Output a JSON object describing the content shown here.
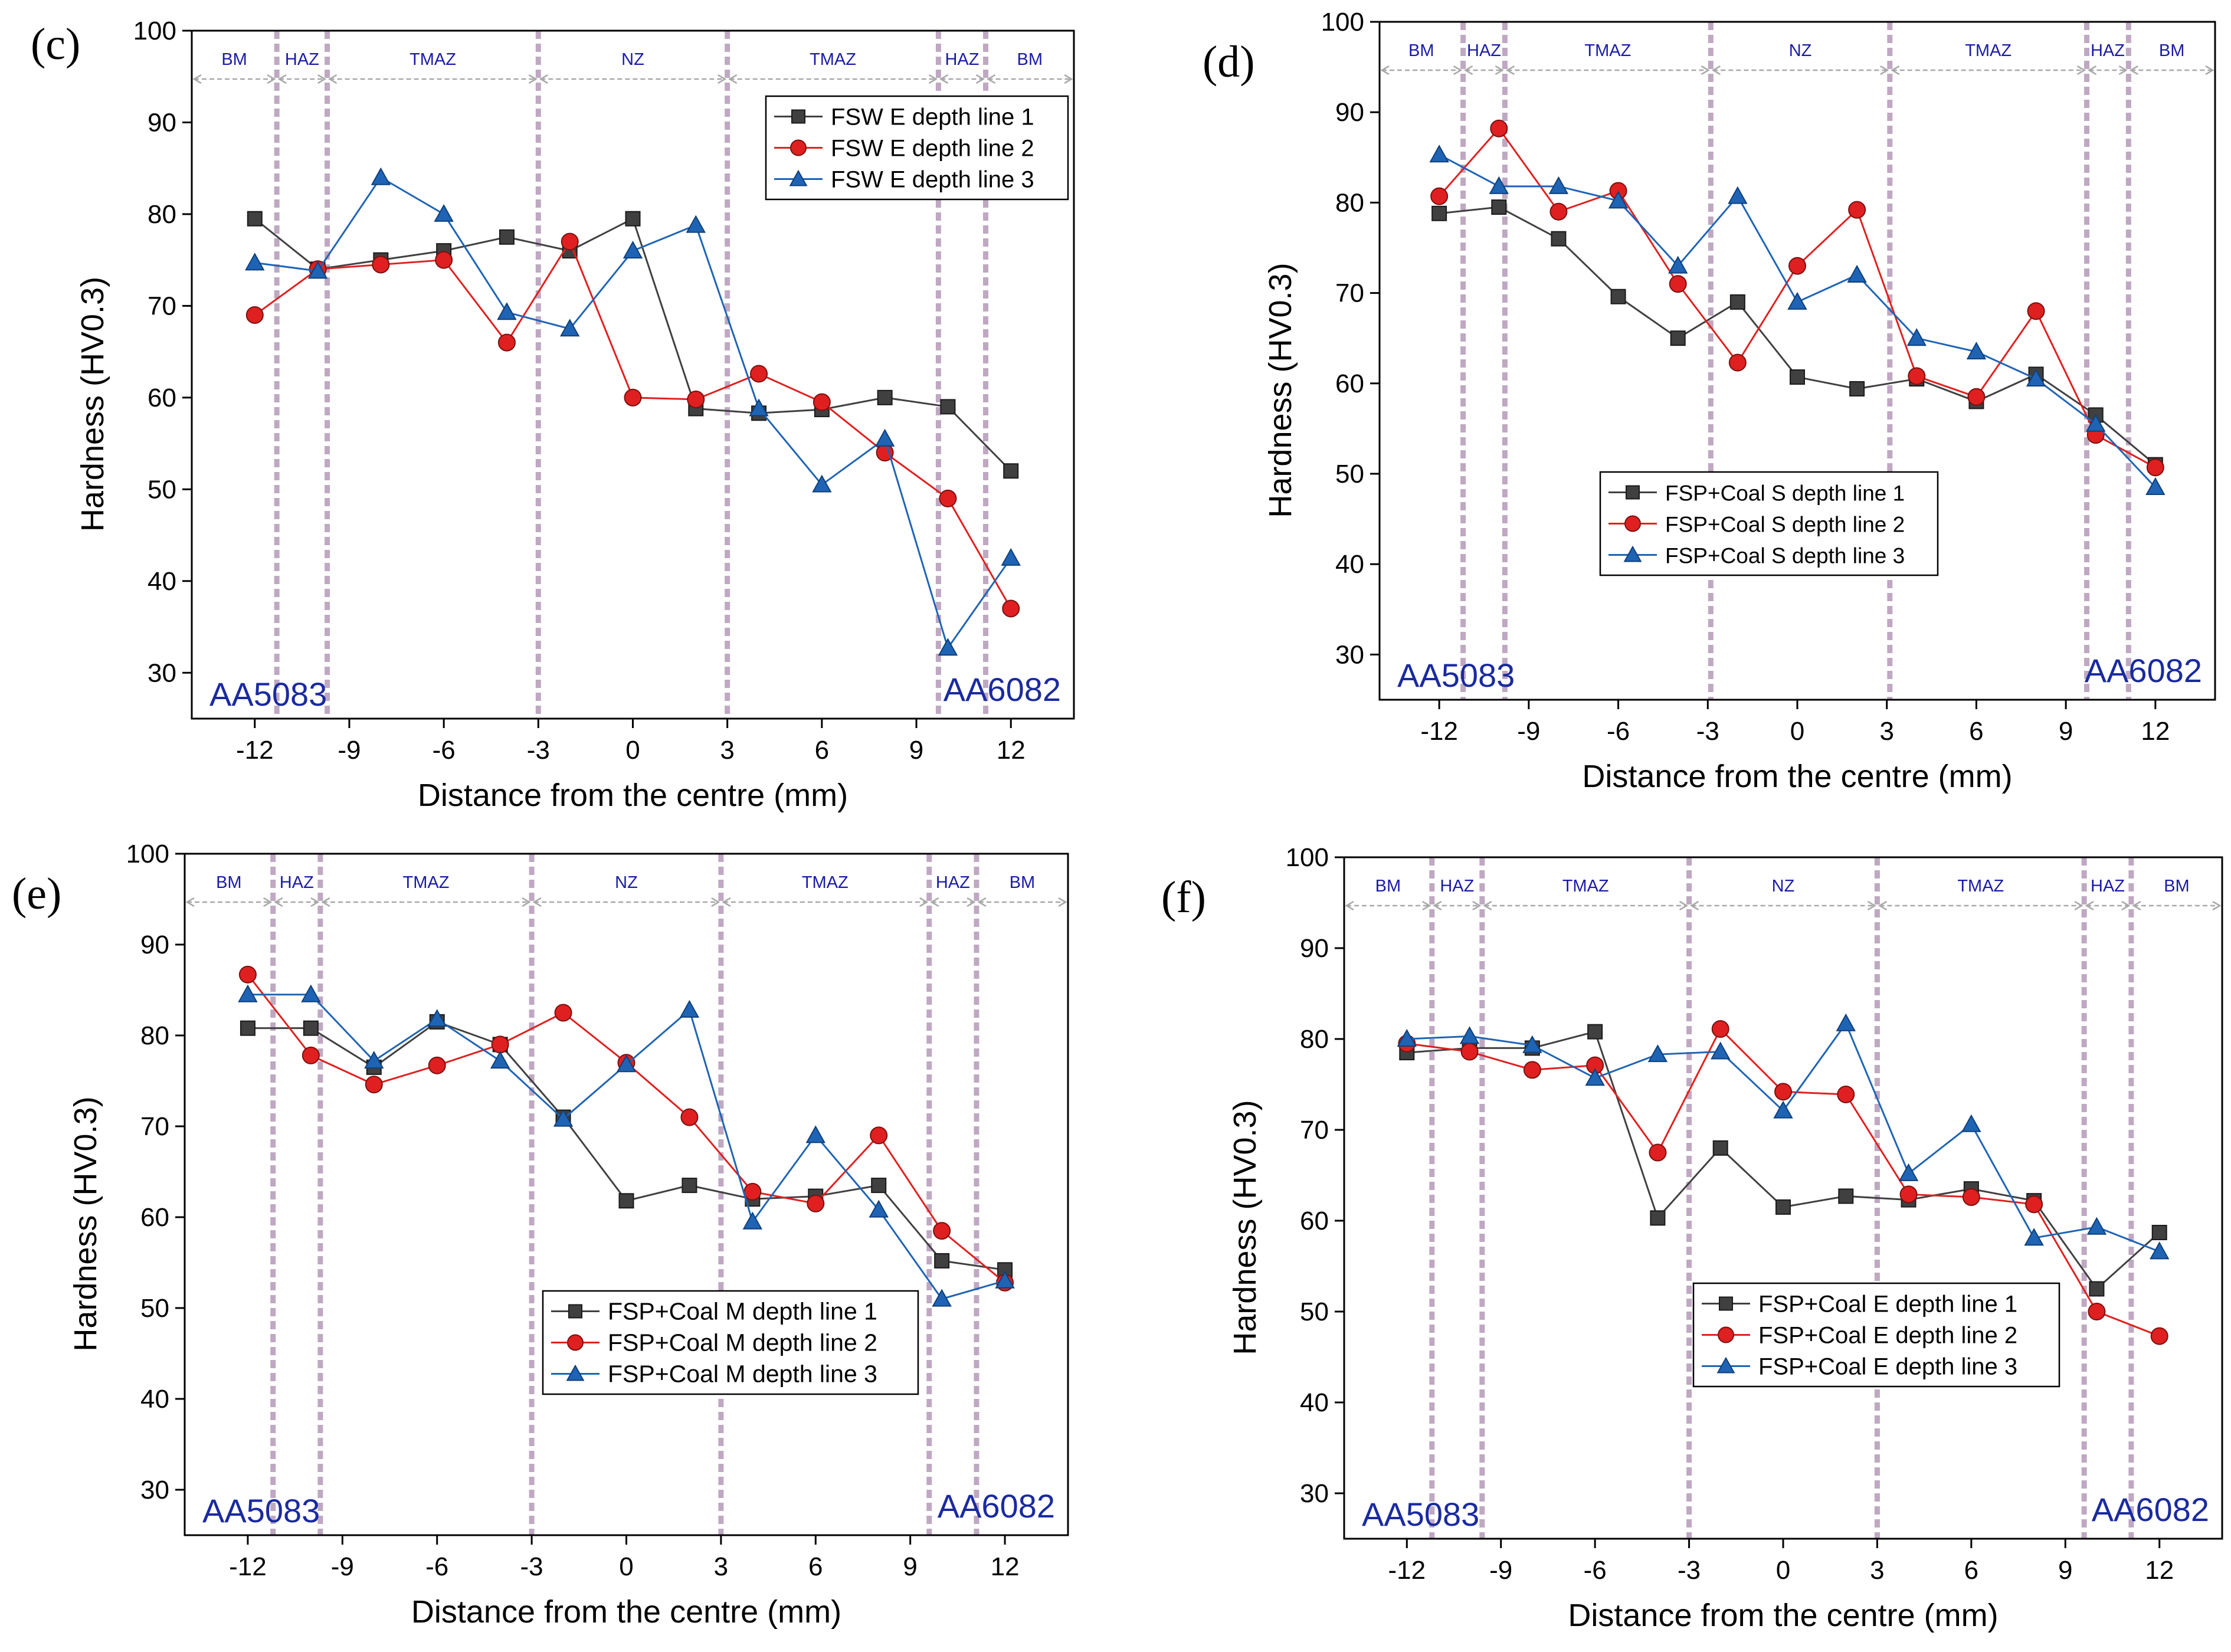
{
  "colors": {
    "series1": "#404040",
    "series2": "#e02020",
    "series3": "#1f64b4",
    "zone_label": "#1a1aa8",
    "material_label": "#1a2aa0",
    "zone_line": "#b49ab8",
    "zone_arrow": "#a8a8a8",
    "axis": "#000000"
  },
  "chart_data": [
    {
      "panel": "(c)",
      "type": "line",
      "xlabel": "Distance from the centre (mm)",
      "ylabel": "Hardness (HV0.3)",
      "xlim": [
        -14,
        14
      ],
      "ylim": [
        25,
        100
      ],
      "xticks": [
        -12,
        -9,
        -6,
        -3,
        0,
        3,
        6,
        9,
        12
      ],
      "yticks": [
        30,
        40,
        50,
        60,
        70,
        80,
        90,
        100
      ],
      "zones": [
        "BM",
        "HAZ",
        "TMAZ",
        "NZ",
        "TMAZ",
        "HAZ",
        "BM"
      ],
      "boundaries": [
        -11.3,
        -9.7,
        -3,
        3,
        9.7,
        11.2
      ],
      "left_material": "AA5083",
      "right_material": "AA6082",
      "legend_position": "top-right",
      "x": [
        -12,
        -10,
        -8,
        -6,
        -4,
        -2,
        0,
        2,
        4,
        6,
        8,
        10,
        12
      ],
      "series": [
        {
          "name": "FSW E depth line 1",
          "marker": "square",
          "values": [
            79.5,
            74,
            75,
            76,
            77.5,
            76,
            79.5,
            58.8,
            58.3,
            58.7,
            60,
            59,
            52
          ]
        },
        {
          "name": "FSW E depth line 2",
          "marker": "circle",
          "values": [
            69,
            74,
            74.5,
            75,
            66,
            77,
            60,
            59.8,
            62.6,
            59.5,
            54,
            49,
            37
          ]
        },
        {
          "name": "FSW E depth line 3",
          "marker": "triangle",
          "values": [
            74.7,
            73.8,
            84,
            80,
            69.3,
            67.5,
            76,
            78.8,
            58.8,
            50.5,
            55.5,
            32.7,
            42.5
          ]
        }
      ]
    },
    {
      "panel": "(d)",
      "type": "line",
      "xlabel": "Distance from the centre (mm)",
      "ylabel": "Hardness (HV0.3)",
      "xlim": [
        -14,
        14
      ],
      "ylim": [
        25,
        100
      ],
      "xticks": [
        -12,
        -9,
        -6,
        -3,
        0,
        3,
        6,
        9,
        12
      ],
      "yticks": [
        30,
        40,
        50,
        60,
        70,
        80,
        90,
        100
      ],
      "zones": [
        "BM",
        "HAZ",
        "TMAZ",
        "NZ",
        "TMAZ",
        "HAZ",
        "BM"
      ],
      "boundaries": [
        -11.2,
        -9.8,
        -2.9,
        3.1,
        9.7,
        11.1
      ],
      "left_material": "AA5083",
      "right_material": "AA6082",
      "legend_position": "lower-middle",
      "x": [
        -12,
        -10,
        -8,
        -6,
        -4,
        -2,
        0,
        2,
        4,
        6,
        8,
        10,
        12
      ],
      "series": [
        {
          "name": "FSP+Coal S depth line 1",
          "marker": "square",
          "values": [
            78.8,
            79.5,
            76,
            69.6,
            65,
            69,
            60.7,
            59.4,
            60.5,
            58,
            61,
            56.5,
            51
          ]
        },
        {
          "name": "FSP+Coal S depth line 2",
          "marker": "circle",
          "values": [
            80.7,
            88.2,
            79,
            81.3,
            71,
            62.3,
            73,
            79.2,
            60.8,
            58.5,
            68,
            54.3,
            50.7
          ]
        },
        {
          "name": "FSP+Coal S depth line 3",
          "marker": "triangle",
          "values": [
            85.3,
            81.8,
            81.8,
            80.2,
            73,
            80.7,
            69,
            72,
            65,
            63.5,
            60.5,
            55.5,
            48.5
          ]
        }
      ]
    },
    {
      "panel": "(e)",
      "type": "line",
      "xlabel": "Distance from the centre (mm)",
      "ylabel": "Hardness (HV0.3)",
      "xlim": [
        -14,
        14
      ],
      "ylim": [
        25,
        100
      ],
      "xticks": [
        -12,
        -9,
        -6,
        -3,
        0,
        3,
        6,
        9,
        12
      ],
      "yticks": [
        30,
        40,
        50,
        60,
        70,
        80,
        90,
        100
      ],
      "zones": [
        "BM",
        "HAZ",
        "TMAZ",
        "NZ",
        "TMAZ",
        "HAZ",
        "BM"
      ],
      "boundaries": [
        -11.2,
        -9.7,
        -3,
        3,
        9.6,
        11.1
      ],
      "left_material": "AA5083",
      "right_material": "AA6082",
      "legend_position": "lower-middle",
      "x": [
        -12,
        -10,
        -8,
        -6,
        -4,
        -2,
        0,
        2,
        4,
        6,
        8,
        10,
        12
      ],
      "series": [
        {
          "name": "FSP+Coal M depth line 1",
          "marker": "square",
          "values": [
            80.8,
            80.8,
            76.5,
            81.5,
            79,
            71,
            61.8,
            63.5,
            62,
            62.3,
            63.5,
            55.2,
            54.2
          ]
        },
        {
          "name": "FSP+Coal M depth line 2",
          "marker": "circle",
          "values": [
            86.7,
            77.8,
            74.6,
            76.7,
            79,
            82.5,
            77,
            71,
            62.8,
            61.5,
            69,
            58.5,
            52.8
          ]
        },
        {
          "name": "FSP+Coal M depth line 3",
          "marker": "triangle",
          "values": [
            84.5,
            84.5,
            77.2,
            81.8,
            77.2,
            70.8,
            76.8,
            82.8,
            59.5,
            69,
            60.8,
            51,
            53
          ]
        }
      ]
    },
    {
      "panel": "(f)",
      "type": "line",
      "xlabel": "Distance from the centre (mm)",
      "ylabel": "Hardness (HV0.3)",
      "xlim": [
        -14,
        14
      ],
      "ylim": [
        25,
        100
      ],
      "xticks": [
        -12,
        -9,
        -6,
        -3,
        0,
        3,
        6,
        9,
        12
      ],
      "yticks": [
        30,
        40,
        50,
        60,
        70,
        80,
        90,
        100
      ],
      "zones": [
        "BM",
        "HAZ",
        "TMAZ",
        "NZ",
        "TMAZ",
        "HAZ",
        "BM"
      ],
      "boundaries": [
        -11.2,
        -9.6,
        -3,
        3,
        9.6,
        11.1
      ],
      "left_material": "AA5083",
      "right_material": "AA6082",
      "legend_position": "lower-right",
      "x": [
        -12,
        -10,
        -8,
        -6,
        -4,
        -2,
        0,
        2,
        4,
        6,
        8,
        10,
        12
      ],
      "series": [
        {
          "name": "FSP+Coal E depth line 1",
          "marker": "square",
          "values": [
            78.5,
            79,
            79,
            80.8,
            60.3,
            68,
            61.5,
            62.7,
            62.3,
            63.5,
            62.2,
            52.5,
            58.7
          ]
        },
        {
          "name": "FSP+Coal E depth line 2",
          "marker": "circle",
          "values": [
            79.5,
            78.6,
            76.6,
            77.1,
            67.5,
            81.1,
            74.2,
            73.9,
            62.9,
            62.6,
            61.8,
            50,
            47.3
          ]
        },
        {
          "name": "FSP+Coal E depth line 3",
          "marker": "triangle",
          "values": [
            80,
            80.3,
            79.3,
            75.7,
            78.3,
            78.6,
            72.1,
            81.7,
            65.2,
            70.6,
            58.1,
            59.3,
            56.6
          ]
        }
      ]
    }
  ]
}
